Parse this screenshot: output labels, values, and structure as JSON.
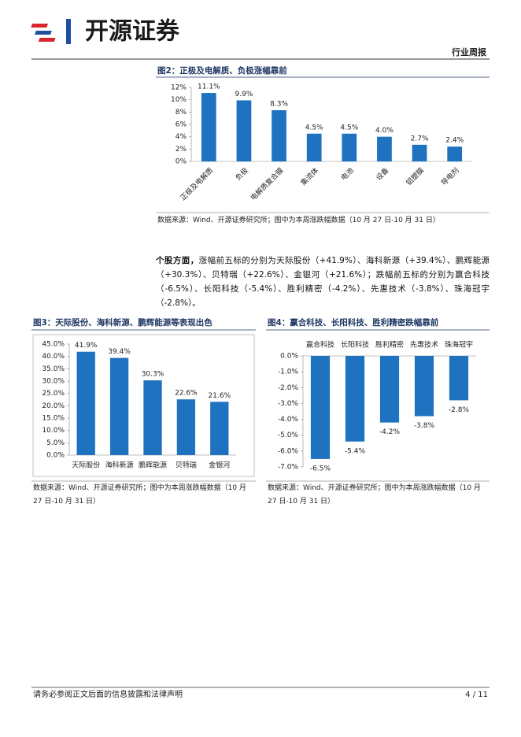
{
  "header": {
    "logo": "开源证券",
    "report_type": "行业周报"
  },
  "chart_data": [
    {
      "type": "bar",
      "title": "图2：正极及电解质、负极涨幅靠前",
      "categories": [
        "正极及电解质",
        "负极",
        "电解质复合膜",
        "集流体",
        "电池",
        "设备",
        "铝塑膜",
        "导电剂"
      ],
      "values": [
        11.1,
        9.9,
        8.3,
        4.5,
        4.5,
        4.0,
        2.7,
        2.4
      ],
      "value_labels": [
        "11.1%",
        "9.9%",
        "8.3%",
        "4.5%",
        "4.5%",
        "4.0%",
        "2.7%",
        "2.4%"
      ],
      "color": "#1f72c0",
      "ylim": [
        0,
        12
      ],
      "yticks": [
        {
          "value": 0,
          "label": "0%"
        },
        {
          "value": 2,
          "label": "2%"
        },
        {
          "value": 4,
          "label": "4%"
        },
        {
          "value": 6,
          "label": "6%"
        },
        {
          "value": 8,
          "label": "8%"
        },
        {
          "value": 10,
          "label": "10%"
        },
        {
          "value": 12,
          "label": "12%"
        }
      ],
      "source": "数据来源：Wind、开源证券研究所；图中为本周涨跌幅数据（10 月 27 日-10 月 31 日）"
    },
    {
      "type": "bar",
      "title": "图3：天际股份、海科新源、鹏辉能源等表现出色",
      "categories": [
        "天际股份",
        "海科新源",
        "鹏辉能源",
        "贝特瑞",
        "金银河"
      ],
      "values": [
        41.9,
        39.4,
        30.3,
        22.6,
        21.6
      ],
      "value_labels": [
        "41.9%",
        "39.4%",
        "30.3%",
        "22.6%",
        "21.6%"
      ],
      "color": "#1f72c0",
      "ylim": [
        0,
        45
      ],
      "yticks": [
        {
          "value": 0,
          "label": "0.0%"
        },
        {
          "value": 5,
          "label": "5.0%"
        },
        {
          "value": 10,
          "label": "10.0%"
        },
        {
          "value": 15,
          "label": "15.0%"
        },
        {
          "value": 20,
          "label": "20.0%"
        },
        {
          "value": 25,
          "label": "25.0%"
        },
        {
          "value": 30,
          "label": "30.0%"
        },
        {
          "value": 35,
          "label": "35.0%"
        },
        {
          "value": 40,
          "label": "40.0%"
        },
        {
          "value": 45,
          "label": "45.0%"
        }
      ],
      "source": "数据来源：Wind、开源证券研究所；图中为本周涨跌幅数据（10 月 27 日-10 月 31 日）"
    },
    {
      "type": "bar",
      "title": "图4：赢合科技、长阳科技、胜利精密跌幅靠前",
      "categories": [
        "赢合科技",
        "长阳科技",
        "胜利精密",
        "先惠技术",
        "珠海冠宇"
      ],
      "values": [
        -6.5,
        -5.4,
        -4.2,
        -3.8,
        -2.8
      ],
      "value_labels": [
        "-6.5%",
        "-5.4%",
        "-4.2%",
        "-3.8%",
        "-2.8%"
      ],
      "color": "#1f72c0",
      "ylim": [
        -7,
        0
      ],
      "yticks": [
        {
          "value": 0,
          "label": "0.0%"
        },
        {
          "value": -1,
          "label": "-1.0%"
        },
        {
          "value": -2,
          "label": "-2.0%"
        },
        {
          "value": -3,
          "label": "-3.0%"
        },
        {
          "value": -4,
          "label": "-4.0%"
        },
        {
          "value": -5,
          "label": "-5.0%"
        },
        {
          "value": -6,
          "label": "-6.0%"
        },
        {
          "value": -7,
          "label": "-7.0%"
        }
      ],
      "source": "数据来源：Wind、开源证券研究所；图中为本周涨跌幅数据（10 月 27 日-10 月 31 日）"
    }
  ],
  "paragraph": {
    "lead": "个股方面，",
    "body": "涨幅前五标的分别为天际股份（+41.9%）、海科新源（+39.4%）、鹏辉能源（+30.3%）、贝特瑞（+22.6%）、金银河（+21.6%）；跌幅前五标的分别为赢合科技（-6.5%）、长阳科技（-5.4%）、胜利精密（-4.2%）、先惠技术（-3.8%）、珠海冠宇（-2.8%）。"
  },
  "footer": {
    "disclaimer": "请务必参阅正文后面的信息披露和法律声明",
    "page": "4 / 11"
  }
}
